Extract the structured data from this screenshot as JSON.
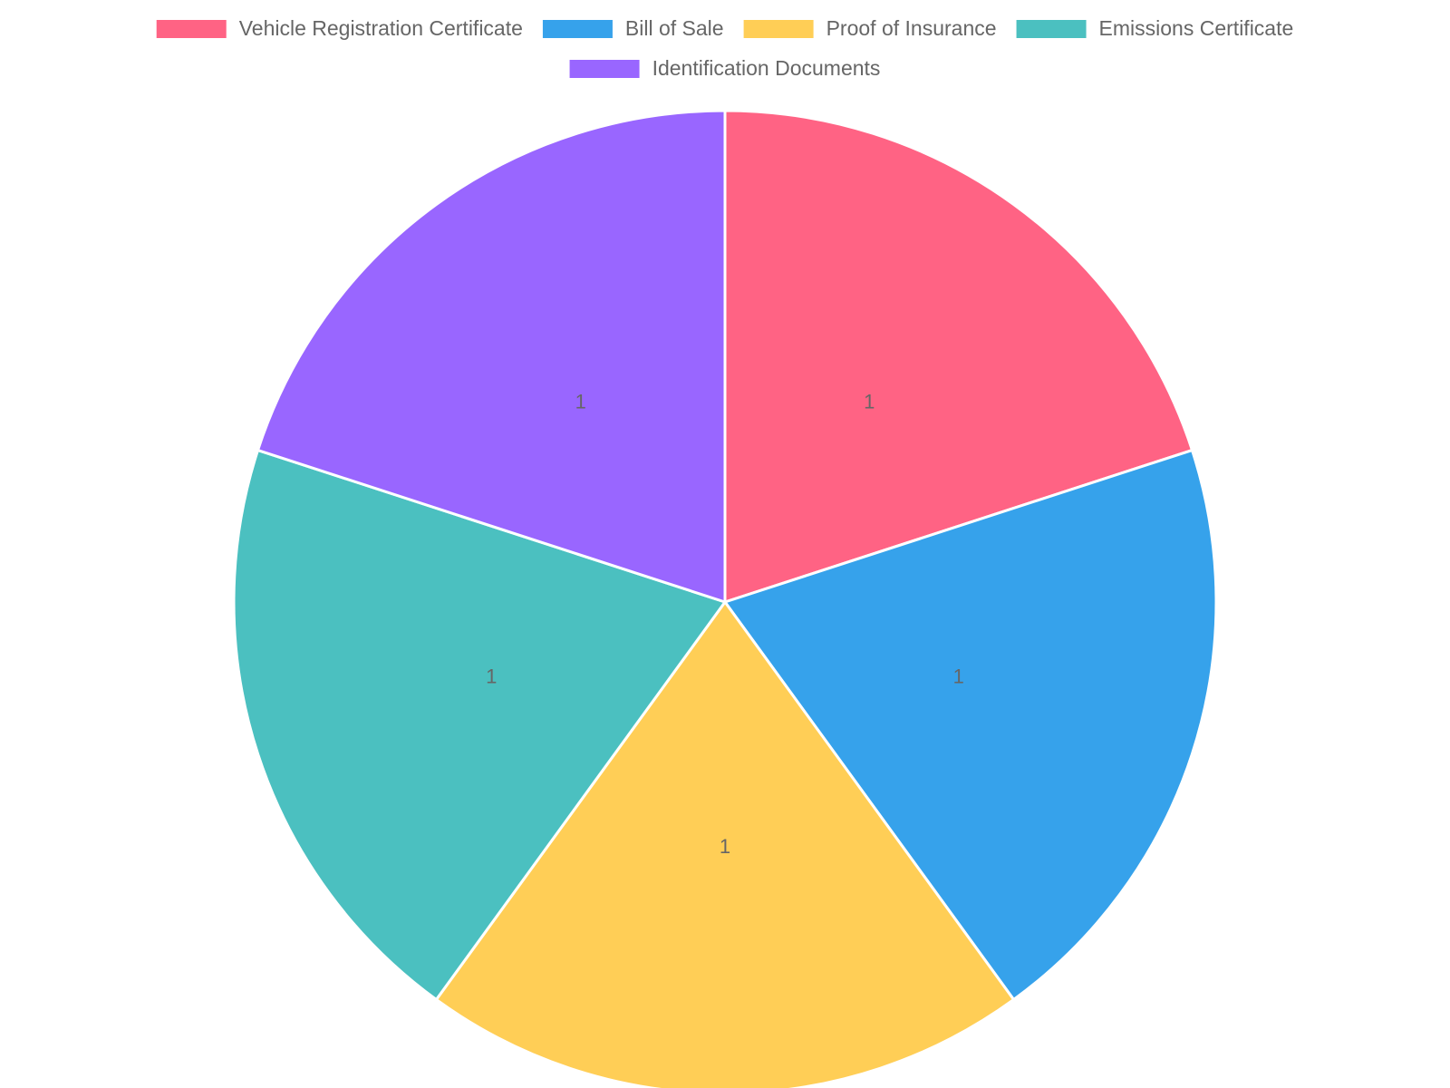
{
  "chart_data": {
    "type": "pie",
    "categories": [
      "Vehicle Registration Certificate",
      "Bill of Sale",
      "Proof of Insurance",
      "Emissions Certificate",
      "Identification Documents"
    ],
    "values": [
      1,
      1,
      1,
      1,
      1
    ],
    "colors": [
      "#ff6384",
      "#36a2eb",
      "#ffce56",
      "#4bc0c0",
      "#9966ff"
    ],
    "legend": "top"
  }
}
